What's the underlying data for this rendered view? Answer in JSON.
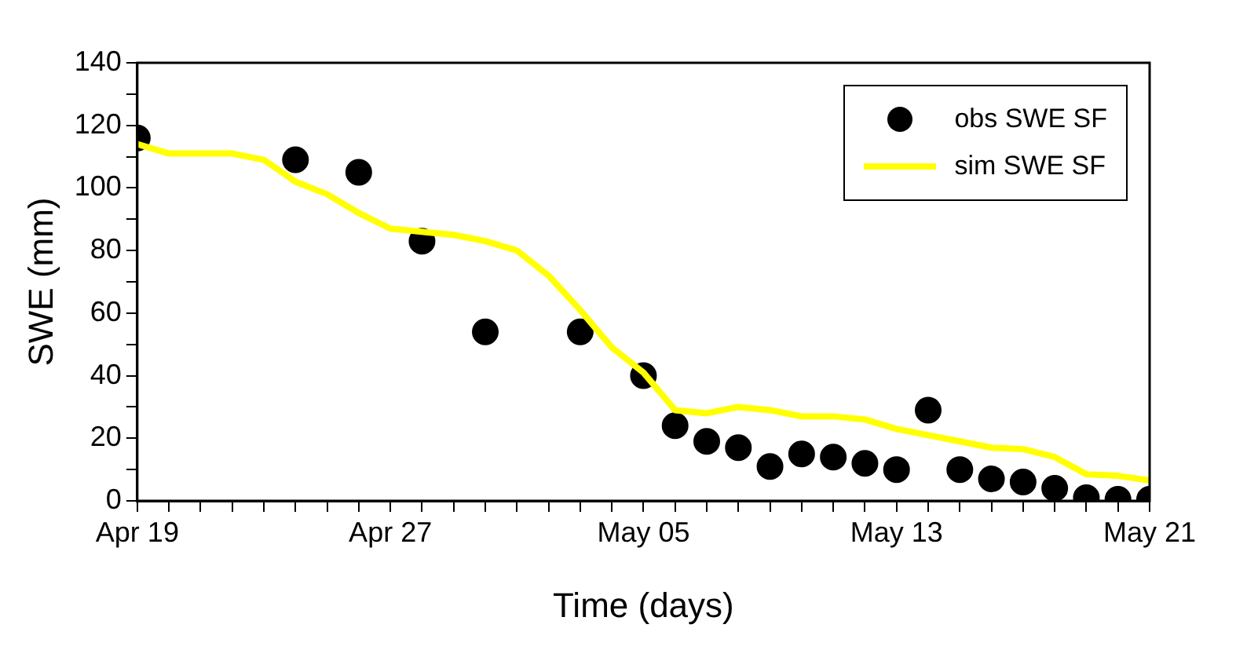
{
  "chart_data": {
    "type": "line",
    "xlabel": "Time (days)",
    "ylabel": "SWE (mm)",
    "xlim": [
      "--04-19",
      "--05-21"
    ],
    "ylim": [
      0,
      140
    ],
    "xticks": [
      {
        "value": "--04-19",
        "label": "Apr 19"
      },
      {
        "value": "--04-20",
        "label": null
      },
      {
        "value": "--04-21",
        "label": null
      },
      {
        "value": "--04-22",
        "label": null
      },
      {
        "value": "--04-23",
        "label": null
      },
      {
        "value": "--04-24",
        "label": null
      },
      {
        "value": "--04-25",
        "label": null
      },
      {
        "value": "--04-26",
        "label": null
      },
      {
        "value": "--04-27",
        "label": "Apr 27"
      },
      {
        "value": "--04-28",
        "label": null
      },
      {
        "value": "--04-29",
        "label": null
      },
      {
        "value": "--04-30",
        "label": null
      },
      {
        "value": "--05-01",
        "label": null
      },
      {
        "value": "--05-02",
        "label": null
      },
      {
        "value": "--05-03",
        "label": null
      },
      {
        "value": "--05-04",
        "label": null
      },
      {
        "value": "--05-05",
        "label": "May 05"
      },
      {
        "value": "--05-06",
        "label": null
      },
      {
        "value": "--05-07",
        "label": null
      },
      {
        "value": "--05-08",
        "label": null
      },
      {
        "value": "--05-09",
        "label": null
      },
      {
        "value": "--05-10",
        "label": null
      },
      {
        "value": "--05-11",
        "label": null
      },
      {
        "value": "--05-12",
        "label": null
      },
      {
        "value": "--05-13",
        "label": "May 13"
      },
      {
        "value": "--05-14",
        "label": null
      },
      {
        "value": "--05-15",
        "label": null
      },
      {
        "value": "--05-16",
        "label": null
      },
      {
        "value": "--05-17",
        "label": null
      },
      {
        "value": "--05-18",
        "label": null
      },
      {
        "value": "--05-19",
        "label": null
      },
      {
        "value": "--05-20",
        "label": null
      },
      {
        "value": "--05-21",
        "label": "May 21"
      }
    ],
    "yticks": [
      0,
      {
        "value": 10,
        "label": null
      },
      20,
      {
        "value": 30,
        "label": null
      },
      40,
      {
        "value": 50,
        "label": null
      },
      60,
      {
        "value": 70,
        "label": null
      },
      80,
      {
        "value": 90,
        "label": null
      },
      100,
      {
        "value": 110,
        "label": null
      },
      120,
      {
        "value": 130,
        "label": null
      },
      140
    ],
    "grid": false,
    "legend": "top right",
    "series": [
      {
        "name": "obs SWE SF",
        "type": "scatter",
        "marker": "circle",
        "color": "#000000",
        "x": [
          "--04-19",
          "--04-24",
          "--04-26",
          "--04-28",
          "--04-30",
          "--05-03",
          "--05-05",
          "--05-06",
          "--05-07",
          "--05-08",
          "--05-09",
          "--05-10",
          "--05-11",
          "--05-12",
          "--05-13",
          "--05-14",
          "--05-15",
          "--05-16",
          "--05-17",
          "--05-18",
          "--05-19",
          "--05-20",
          "--05-21"
        ],
        "values": [
          116,
          109,
          105,
          83,
          54,
          54,
          40,
          24,
          19,
          17,
          11,
          15,
          14,
          12,
          10,
          29,
          10,
          7,
          6,
          4,
          1,
          0.5,
          0.5
        ]
      },
      {
        "name": "sim SWE SF",
        "type": "line",
        "marker": "none",
        "line_style": "solid",
        "color": "#ffff00",
        "x": [
          "--04-19",
          "--04-20",
          "--04-21",
          "--04-22",
          "--04-23",
          "--04-24",
          "--04-25",
          "--04-26",
          "--04-27",
          "--04-28",
          "--04-29",
          "--04-30",
          "--05-01",
          "--05-02",
          "--05-03",
          "--05-04",
          "--05-05",
          "--05-06",
          "--05-07",
          "--05-08",
          "--05-09",
          "--05-10",
          "--05-11",
          "--05-12",
          "--05-13",
          "--05-14",
          "--05-15",
          "--05-16",
          "--05-17",
          "--05-18",
          "--05-19",
          "--05-20",
          "--05-21"
        ],
        "values": [
          114,
          111,
          111,
          111,
          109,
          102,
          98,
          92,
          87,
          86,
          85,
          83,
          80,
          72,
          61,
          49,
          41,
          29,
          28,
          30,
          29,
          27,
          27,
          26,
          23,
          21,
          19,
          17,
          16.5,
          14,
          8.5,
          8,
          6.5
        ]
      }
    ]
  }
}
